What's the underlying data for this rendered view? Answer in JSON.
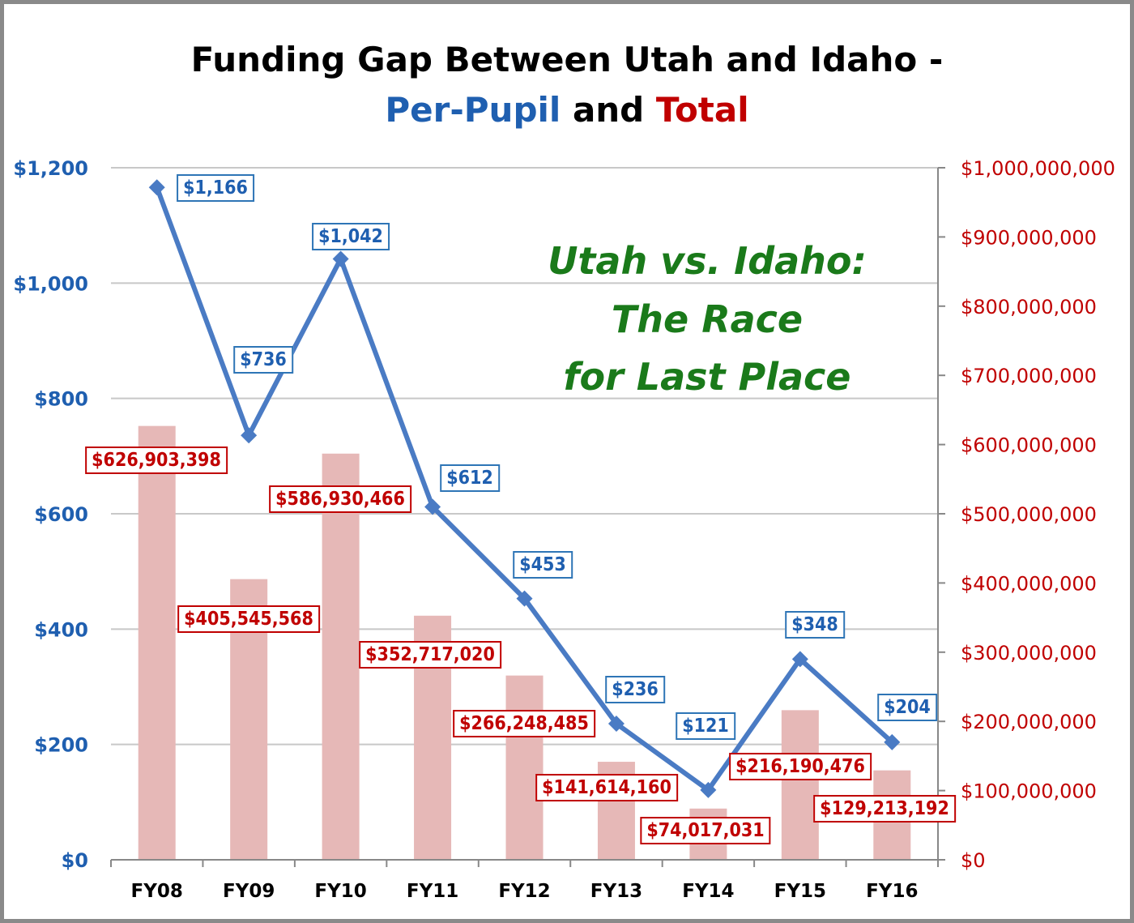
{
  "colors": {
    "line": "#4a7bc4",
    "bar": "#e6b8b7",
    "left_axis": "#1f5fb0",
    "right_axis": "#c00000",
    "annotation": "#1a7a1a"
  },
  "chart_data": {
    "type": "bar+line",
    "title_line1": "Funding Gap Between Utah and Idaho -",
    "title_part_blue": "Per-Pupil",
    "title_part_and": "and",
    "title_part_red": "Total",
    "annotation": [
      "Utah vs. Idaho:",
      "The Race",
      "for Last Place"
    ],
    "categories": [
      "FY08",
      "FY09",
      "FY10",
      "FY11",
      "FY12",
      "FY13",
      "FY14",
      "FY15",
      "FY16"
    ],
    "series": [
      {
        "name": "Per-Pupil",
        "type": "line",
        "axis": "left",
        "values": [
          1166,
          736,
          1042,
          612,
          453,
          236,
          121,
          348,
          204
        ],
        "labels": [
          "$1,166",
          "$736",
          "$1,042",
          "$612",
          "$453",
          "$236",
          "$121",
          "$348",
          "$204"
        ]
      },
      {
        "name": "Total",
        "type": "bar",
        "axis": "right",
        "values": [
          626903398,
          405545568,
          586930466,
          352717020,
          266248485,
          141614160,
          74017031,
          216190476,
          129213192
        ],
        "labels": [
          "$626,903,398",
          "$405,545,568",
          "$586,930,466",
          "$352,717,020",
          "$266,248,485",
          "$141,614,160",
          "$74,017,031",
          "$216,190,476",
          "$129,213,192"
        ]
      }
    ],
    "left_axis": {
      "ylim": [
        0,
        1200
      ],
      "ticks": [
        "$0",
        "$200",
        "$400",
        "$600",
        "$800",
        "$1,000",
        "$1,200"
      ]
    },
    "right_axis": {
      "ylim": [
        0,
        1000000000
      ],
      "ticks": [
        "$0",
        "$100,000,000",
        "$200,000,000",
        "$300,000,000",
        "$400,000,000",
        "$500,000,000",
        "$600,000,000",
        "$700,000,000",
        "$800,000,000",
        "$900,000,000",
        "$1,000,000,000"
      ]
    },
    "grid": true
  }
}
